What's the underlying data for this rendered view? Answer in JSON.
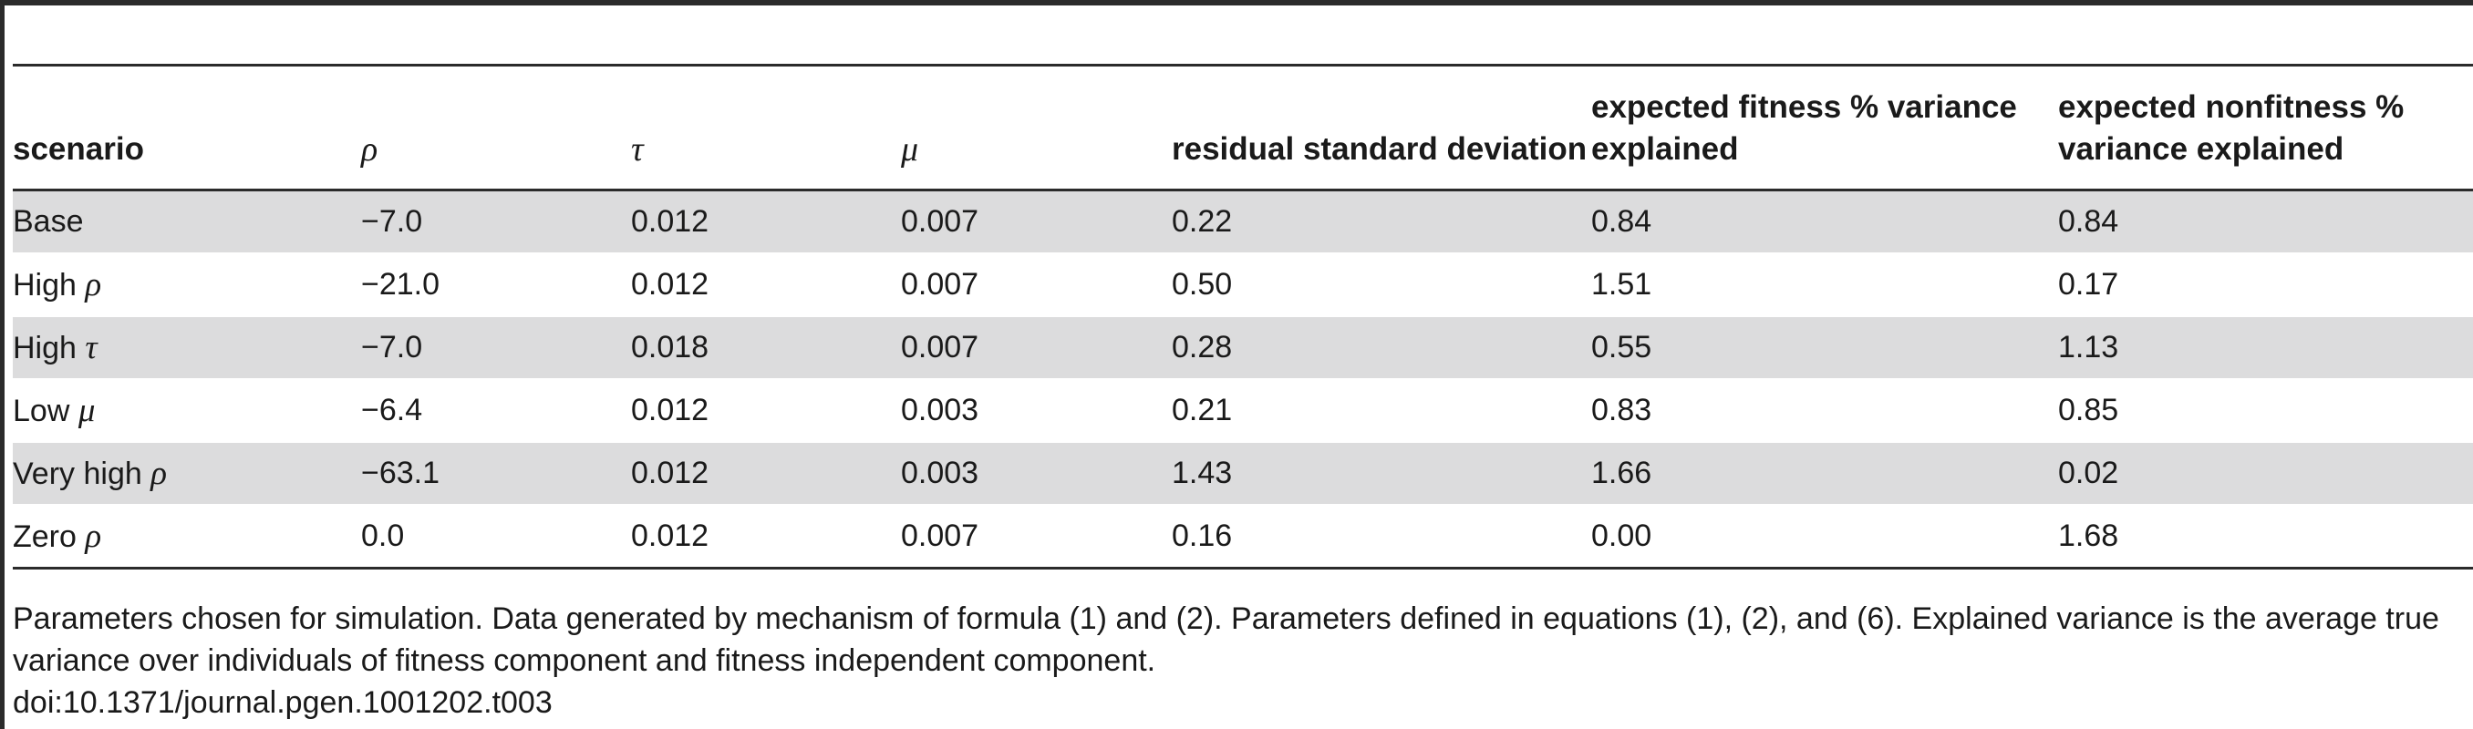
{
  "table": {
    "headers": [
      {
        "key": "scenario",
        "label": "scenario"
      },
      {
        "key": "rho",
        "label": "ρ"
      },
      {
        "key": "tau",
        "label": "τ"
      },
      {
        "key": "mu",
        "label": "μ"
      },
      {
        "key": "residual_sd",
        "label": "residual standard deviation"
      },
      {
        "key": "fitness_var",
        "label": "expected fitness % variance explained"
      },
      {
        "key": "nonfitness_var",
        "label": "expected nonfitness % variance explained"
      }
    ],
    "rows": [
      {
        "scenario": "Base",
        "greek": "",
        "rho": "−7.0",
        "tau": "0.012",
        "mu": "0.007",
        "residual_sd": "0.22",
        "fitness_var": "0.84",
        "nonfitness_var": "0.84"
      },
      {
        "scenario": "High",
        "greek": "ρ",
        "rho": "−21.0",
        "tau": "0.012",
        "mu": "0.007",
        "residual_sd": "0.50",
        "fitness_var": "1.51",
        "nonfitness_var": "0.17"
      },
      {
        "scenario": "High",
        "greek": "τ",
        "rho": "−7.0",
        "tau": "0.018",
        "mu": "0.007",
        "residual_sd": "0.28",
        "fitness_var": "0.55",
        "nonfitness_var": "1.13"
      },
      {
        "scenario": "Low",
        "greek": "μ",
        "rho": "−6.4",
        "tau": "0.012",
        "mu": "0.003",
        "residual_sd": "0.21",
        "fitness_var": "0.83",
        "nonfitness_var": "0.85"
      },
      {
        "scenario": "Very high",
        "greek": "ρ",
        "rho": "−63.1",
        "tau": "0.012",
        "mu": "0.003",
        "residual_sd": "1.43",
        "fitness_var": "1.66",
        "nonfitness_var": "0.02"
      },
      {
        "scenario": "Zero",
        "greek": "ρ",
        "rho": "0.0",
        "tau": "0.012",
        "mu": "0.007",
        "residual_sd": "0.16",
        "fitness_var": "0.00",
        "nonfitness_var": "1.68"
      }
    ]
  },
  "footnote": "Parameters chosen for simulation. Data generated by mechanism of formula (1) and (2). Parameters defined in equations (1), (2), and (6). Explained variance is the average true variance over individuals of fitness component and fitness independent component.",
  "doi": "doi:10.1371/journal.pgen.1001202.t003"
}
